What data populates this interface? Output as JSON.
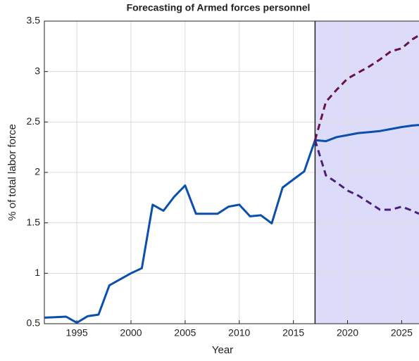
{
  "chart_data": {
    "type": "line",
    "title": "Forecasting of Armed forces personnel",
    "xlabel": "Year",
    "ylabel": "% of total labor force",
    "xlim": [
      1992,
      2026.6
    ],
    "ylim": [
      0.5,
      3.5
    ],
    "xticks": [
      1995,
      2000,
      2005,
      2010,
      2015,
      2020,
      2025
    ],
    "yticks": [
      0.5,
      1,
      1.5,
      2,
      2.5,
      3,
      3.5
    ],
    "grid": true,
    "forecast_start": 2017,
    "forecast_color": "#dcdcfa",
    "series": [
      {
        "color": "#0a4fae",
        "dash": false,
        "x": [
          1992,
          1993,
          1994,
          1995,
          1996,
          1997,
          1998,
          1999,
          2000,
          2001,
          2002,
          2003,
          2004,
          2005,
          2006,
          2007,
          2008,
          2009,
          2010,
          2011,
          2012,
          2013,
          2014,
          2015,
          2016,
          2017,
          2018,
          2019,
          2020,
          2021,
          2022,
          2023,
          2024,
          2025,
          2026,
          2026.6
        ],
        "values": [
          0.56,
          0.565,
          0.57,
          0.51,
          0.575,
          0.59,
          0.88,
          0.94,
          1.0,
          1.05,
          1.68,
          1.62,
          1.76,
          1.87,
          1.59,
          1.59,
          1.59,
          1.66,
          1.68,
          1.565,
          1.575,
          1.495,
          1.85,
          1.93,
          2.01,
          2.32,
          2.31,
          2.35,
          2.37,
          2.39,
          2.4,
          2.41,
          2.43,
          2.45,
          2.465,
          2.47
        ]
      },
      {
        "color": "#6b0f4f",
        "dash": true,
        "x": [
          2017,
          2018,
          2019,
          2020,
          2021,
          2022,
          2023,
          2024,
          2025,
          2026,
          2026.6
        ],
        "values": [
          2.32,
          2.7,
          2.82,
          2.93,
          2.99,
          3.05,
          3.12,
          3.2,
          3.23,
          3.32,
          3.36
        ]
      },
      {
        "color": "#4b1f7a",
        "dash": true,
        "x": [
          2017,
          2018,
          2019,
          2020,
          2021,
          2022,
          2023,
          2024,
          2025,
          2026,
          2026.6
        ],
        "values": [
          2.32,
          1.97,
          1.9,
          1.82,
          1.77,
          1.7,
          1.63,
          1.63,
          1.66,
          1.62,
          1.59
        ]
      }
    ]
  }
}
